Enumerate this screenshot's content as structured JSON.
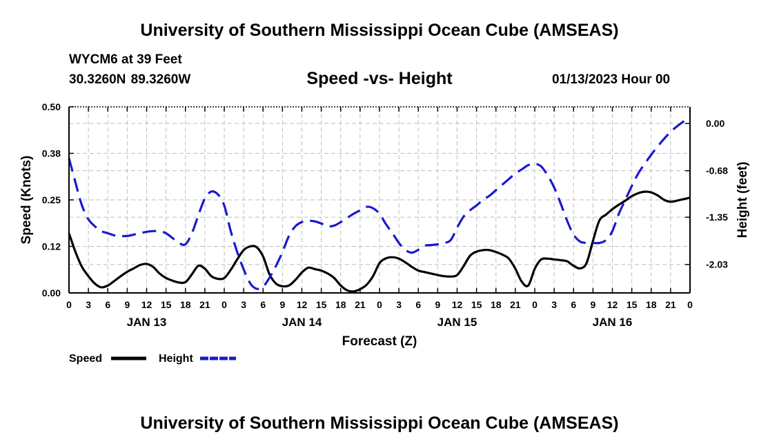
{
  "header": {
    "title": "University of Southern Mississippi Ocean Cube (AMSEAS)",
    "station": "WYCM6 at 39 Feet",
    "coordinates": "30.3260N  89.3260W",
    "subtitle": "Speed -vs- Height",
    "datetime": "01/13/2023 Hour 00"
  },
  "footer": {
    "title": "University of Southern Mississippi Ocean Cube (AMSEAS)"
  },
  "chart_data": {
    "type": "line",
    "title": "Speed -vs- Height",
    "xlabel": "Forecast (Z)",
    "ylabel": "Speed (Knots)",
    "y2label": "Height (feet)",
    "x_ticks": [
      0,
      3,
      6,
      9,
      12,
      15,
      18,
      21,
      24,
      27,
      30,
      33,
      36,
      39,
      42,
      45,
      48,
      51,
      54,
      57,
      60,
      63,
      66,
      69,
      72,
      75,
      78,
      81,
      84,
      87,
      90,
      93,
      96
    ],
    "x_tick_labels": [
      "0",
      "3",
      "6",
      "9",
      "12",
      "15",
      "18",
      "21",
      "0",
      "3",
      "6",
      "9",
      "12",
      "15",
      "18",
      "21",
      "0",
      "3",
      "6",
      "9",
      "12",
      "15",
      "18",
      "21",
      "0",
      "3",
      "6",
      "9",
      "12",
      "15",
      "18",
      "21",
      "0"
    ],
    "day_labels": [
      {
        "label": "JAN 13",
        "x": 12
      },
      {
        "label": "JAN 14",
        "x": 36
      },
      {
        "label": "JAN 15",
        "x": 60
      },
      {
        "label": "JAN 16",
        "x": 84
      }
    ],
    "xlim": [
      0,
      96
    ],
    "ylim": [
      0,
      0.5
    ],
    "y_ticks": [
      0.0,
      0.125,
      0.25,
      0.375,
      0.5
    ],
    "y_tick_labels": [
      "0.00",
      "0.12",
      "0.25",
      "0.38",
      "0.50"
    ],
    "y2lim": [
      -2.44,
      0.24
    ],
    "y2_ticks": [
      -2.03,
      -1.35,
      -0.68,
      0.0
    ],
    "y2_tick_labels": [
      "-2.03",
      "-1.35",
      "-0.68",
      "0.00"
    ],
    "grid": true,
    "legend": "bottom-left",
    "series": [
      {
        "name": "Speed",
        "axis": "left",
        "color": "#000000",
        "style": "solid",
        "x": [
          0,
          1,
          2,
          3,
          4,
          5,
          6,
          7,
          8,
          9,
          10,
          11,
          12,
          13,
          14,
          15,
          16,
          17,
          18,
          19,
          20,
          21,
          22,
          23,
          24,
          25,
          26,
          27,
          28,
          29,
          30,
          31,
          32,
          33,
          34,
          35,
          36,
          37,
          38,
          39,
          40,
          41,
          42,
          43,
          44,
          45,
          46,
          47,
          48,
          49,
          50,
          51,
          52,
          53,
          54,
          55,
          56,
          57,
          58,
          59,
          60,
          61,
          62,
          63,
          64,
          65,
          66,
          67,
          68,
          69,
          70,
          71,
          72,
          73,
          74,
          75,
          76,
          77,
          78,
          79,
          80,
          81,
          82,
          83,
          84,
          85,
          86,
          87,
          88,
          89,
          90,
          91,
          92,
          93,
          94,
          95,
          96
        ],
        "values": [
          0.16,
          0.11,
          0.07,
          0.045,
          0.025,
          0.015,
          0.02,
          0.032,
          0.045,
          0.057,
          0.066,
          0.075,
          0.078,
          0.07,
          0.052,
          0.04,
          0.033,
          0.028,
          0.029,
          0.05,
          0.073,
          0.065,
          0.045,
          0.038,
          0.04,
          0.062,
          0.09,
          0.115,
          0.125,
          0.123,
          0.098,
          0.05,
          0.025,
          0.018,
          0.02,
          0.035,
          0.055,
          0.068,
          0.064,
          0.06,
          0.052,
          0.04,
          0.02,
          0.007,
          0.004,
          0.01,
          0.022,
          0.045,
          0.08,
          0.093,
          0.096,
          0.092,
          0.082,
          0.07,
          0.06,
          0.056,
          0.052,
          0.048,
          0.045,
          0.044,
          0.048,
          0.072,
          0.1,
          0.111,
          0.115,
          0.115,
          0.11,
          0.103,
          0.092,
          0.065,
          0.03,
          0.02,
          0.065,
          0.09,
          0.092,
          0.09,
          0.088,
          0.085,
          0.073,
          0.066,
          0.08,
          0.14,
          0.195,
          0.21,
          0.225,
          0.237,
          0.248,
          0.26,
          0.268,
          0.272,
          0.27,
          0.262,
          0.25,
          0.245,
          0.248,
          0.252,
          0.256
        ]
      },
      {
        "name": "Height",
        "axis": "right",
        "color": "#1a1acc",
        "style": "dashed",
        "x": [
          0,
          1,
          2,
          3,
          4,
          5,
          6,
          7,
          8,
          9,
          10,
          11,
          12,
          13,
          14,
          15,
          16,
          17,
          18,
          19,
          20,
          21,
          22,
          23,
          24,
          25,
          26,
          27,
          28,
          29,
          30,
          31,
          32,
          33,
          34,
          35,
          36,
          37,
          38,
          39,
          40,
          41,
          42,
          43,
          44,
          45,
          46,
          47,
          48,
          49,
          50,
          51,
          52,
          53,
          54,
          55,
          56,
          57,
          58,
          59,
          60,
          61,
          62,
          63,
          64,
          65,
          66,
          67,
          68,
          69,
          70,
          71,
          72,
          73,
          74,
          75,
          76,
          77,
          78,
          79,
          80,
          81,
          82,
          83,
          84,
          85,
          86,
          87,
          88,
          89,
          90,
          91,
          92,
          93,
          94,
          95,
          96
        ],
        "values": [
          -0.5,
          -0.85,
          -1.18,
          -1.38,
          -1.48,
          -1.55,
          -1.58,
          -1.61,
          -1.62,
          -1.62,
          -1.6,
          -1.58,
          -1.56,
          -1.55,
          -1.55,
          -1.58,
          -1.65,
          -1.72,
          -1.74,
          -1.58,
          -1.32,
          -1.08,
          -0.98,
          -1.02,
          -1.18,
          -1.55,
          -1.85,
          -2.1,
          -2.3,
          -2.38,
          -2.35,
          -2.22,
          -2.05,
          -1.85,
          -1.62,
          -1.48,
          -1.42,
          -1.4,
          -1.41,
          -1.44,
          -1.48,
          -1.47,
          -1.42,
          -1.36,
          -1.3,
          -1.25,
          -1.2,
          -1.22,
          -1.3,
          -1.45,
          -1.58,
          -1.72,
          -1.82,
          -1.86,
          -1.82,
          -1.76,
          -1.75,
          -1.74,
          -1.72,
          -1.68,
          -1.5,
          -1.34,
          -1.25,
          -1.18,
          -1.1,
          -1.04,
          -0.96,
          -0.88,
          -0.8,
          -0.72,
          -0.66,
          -0.6,
          -0.58,
          -0.62,
          -0.75,
          -0.92,
          -1.15,
          -1.4,
          -1.6,
          -1.7,
          -1.72,
          -1.72,
          -1.72,
          -1.68,
          -1.55,
          -1.3,
          -1.1,
          -0.9,
          -0.72,
          -0.58,
          -0.45,
          -0.33,
          -0.22,
          -0.12,
          -0.04,
          0.03,
          0.1
        ]
      }
    ]
  }
}
